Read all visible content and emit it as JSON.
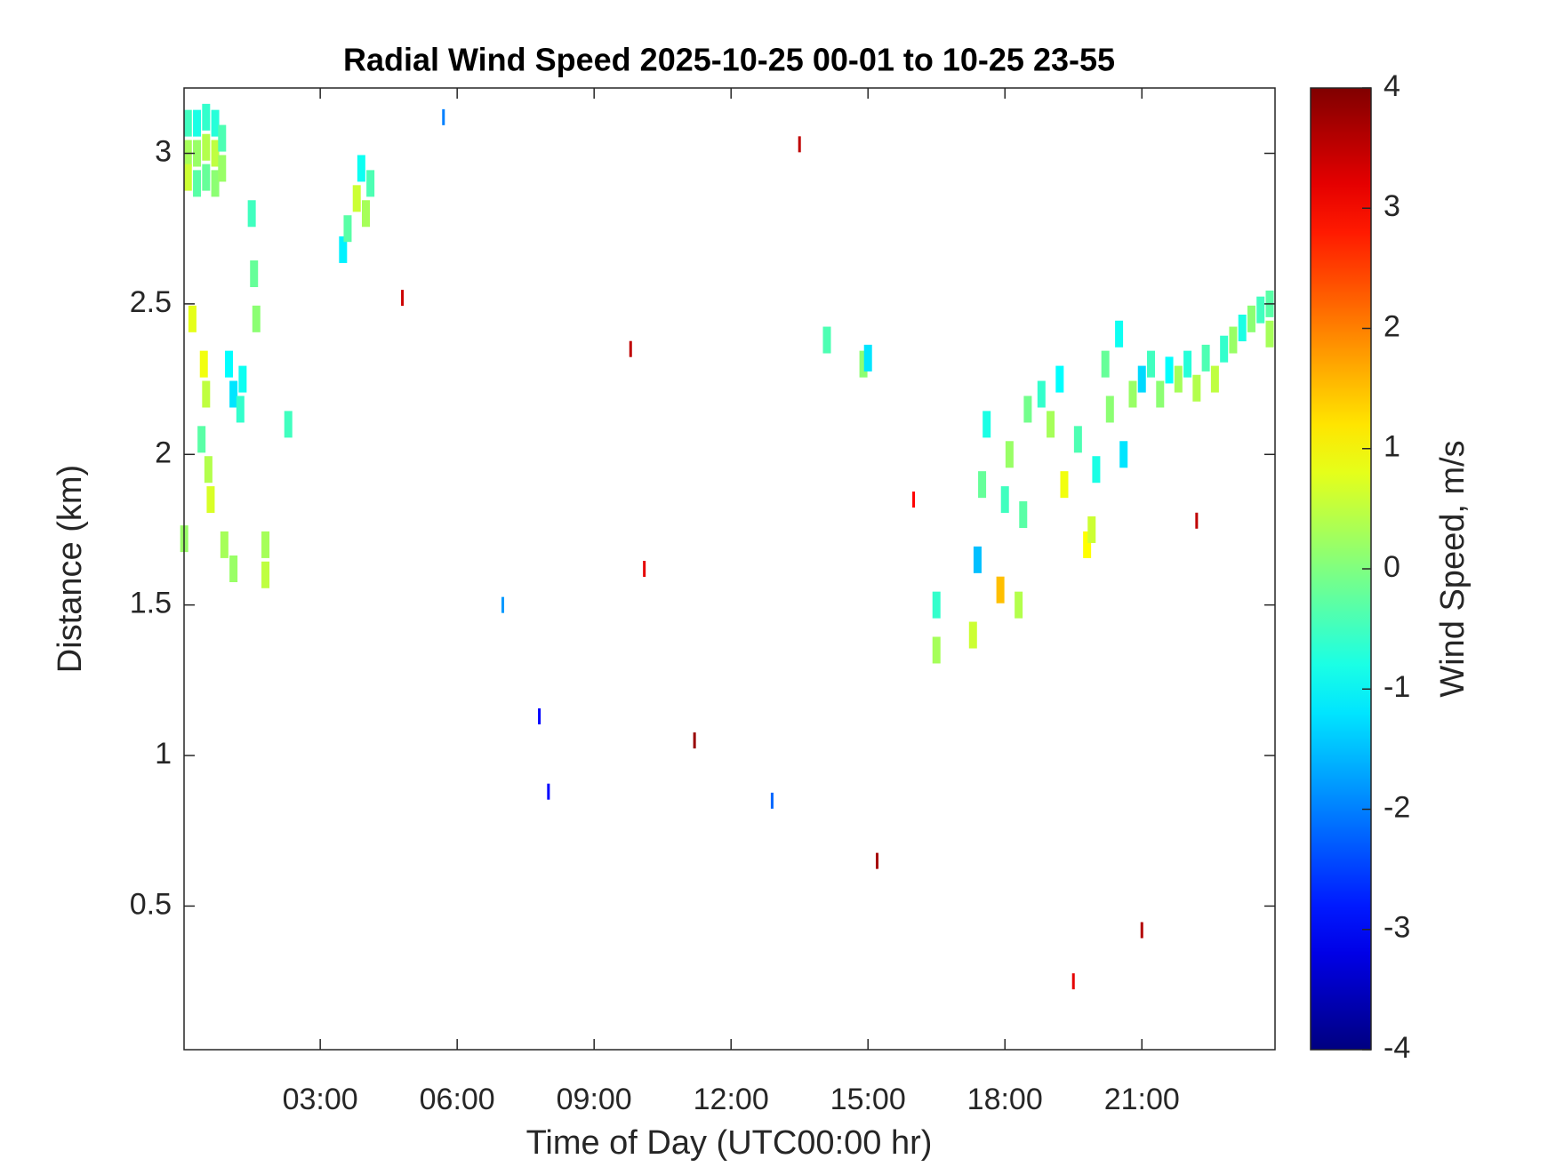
{
  "chart_data": {
    "type": "heatmap",
    "title": "Radial Wind Speed 2025-10-25 00-01 to 10-25 23-55",
    "x_label": "Time of Day (UTC00:00 hr)",
    "y_label": "Distance (km)",
    "colorbar_label": "Wind Speed, m/s",
    "colormap": "jet",
    "xlim": [
      0.0167,
      23.917
    ],
    "ylim": [
      0.023,
      3.217
    ],
    "clim": [
      -4,
      4
    ],
    "xticks": [
      {
        "value": 3,
        "label": "03:00"
      },
      {
        "value": 6,
        "label": "06:00"
      },
      {
        "value": 9,
        "label": "09:00"
      },
      {
        "value": 12,
        "label": "12:00"
      },
      {
        "value": 15,
        "label": "15:00"
      },
      {
        "value": 18,
        "label": "18:00"
      },
      {
        "value": 21,
        "label": "21:00"
      }
    ],
    "yticks": [
      0.5,
      1,
      1.5,
      2,
      2.5,
      3
    ],
    "cticks": [
      -4,
      -3,
      -2,
      -1,
      0,
      1,
      2,
      3,
      4
    ],
    "x": [
      0.1,
      0.1,
      0.1,
      0.3,
      0.3,
      0.3,
      0.5,
      0.5,
      0.5,
      0.7,
      0.7,
      0.7,
      0.85,
      0.85,
      0.2,
      0.45,
      0.5,
      0.4,
      0.55,
      0.6,
      0.9,
      1.1,
      1.0,
      1.1,
      1.25,
      1.3,
      1.5,
      1.55,
      1.6,
      1.8,
      1.8,
      0.02,
      3.5,
      3.6,
      3.8,
      3.9,
      4.1,
      4.0,
      14.1,
      14.9,
      15.0,
      16.5,
      16.5,
      17.3,
      17.4,
      17.5,
      17.6,
      17.9,
      18.0,
      18.1,
      18.3,
      18.4,
      18.5,
      18.8,
      19.0,
      19.2,
      19.3,
      19.6,
      19.8,
      19.9,
      20.0,
      20.2,
      20.3,
      20.5,
      20.6,
      20.8,
      21.0,
      21.2,
      21.4,
      21.6,
      21.8,
      22.0,
      22.2,
      22.4,
      22.6,
      22.8,
      23.0,
      23.2,
      23.4,
      23.6,
      23.8,
      23.8,
      5.7,
      9.8,
      11.2,
      13.5,
      8.0,
      22.2,
      21.0,
      10.1,
      7.8,
      4.8,
      15.2,
      2.3,
      12.9,
      16.0,
      19.5,
      7.0
    ],
    "y": [
      3.1,
      3.0,
      2.92,
      3.1,
      3.0,
      2.9,
      3.12,
      3.02,
      2.92,
      3.1,
      3.0,
      2.9,
      3.05,
      2.95,
      2.45,
      2.3,
      2.2,
      2.05,
      1.95,
      1.85,
      1.7,
      1.62,
      2.3,
      2.2,
      2.15,
      2.25,
      2.8,
      2.6,
      2.45,
      1.6,
      1.7,
      1.72,
      2.68,
      2.75,
      2.85,
      2.95,
      2.9,
      2.8,
      2.38,
      2.3,
      2.32,
      1.5,
      1.35,
      1.4,
      1.65,
      1.9,
      2.1,
      1.55,
      1.85,
      2.0,
      1.5,
      1.8,
      2.15,
      2.2,
      2.1,
      2.25,
      1.9,
      2.05,
      1.7,
      1.75,
      1.95,
      2.3,
      2.15,
      2.4,
      2.0,
      2.2,
      2.25,
      2.3,
      2.2,
      2.28,
      2.25,
      2.3,
      2.22,
      2.32,
      2.25,
      2.35,
      2.38,
      2.42,
      2.45,
      2.48,
      2.4,
      2.5,
      3.12,
      2.35,
      1.05,
      3.03,
      0.88,
      1.78,
      0.42,
      1.62,
      1.13,
      2.52,
      0.65,
      2.1,
      0.85,
      1.85,
      0.25,
      1.5
    ],
    "values": [
      -0.5,
      0.3,
      0.6,
      -0.8,
      0.2,
      -0.3,
      -0.6,
      0.4,
      -0.2,
      -0.7,
      0.5,
      0.1,
      -0.4,
      0.2,
      0.8,
      0.9,
      0.5,
      -0.3,
      0.4,
      0.7,
      0.3,
      0.2,
      -1.0,
      -1.2,
      -0.6,
      -0.9,
      -0.5,
      -0.2,
      0.1,
      0.5,
      0.3,
      0.2,
      -1.1,
      -0.3,
      0.6,
      -0.9,
      -0.4,
      0.3,
      -0.4,
      0.1,
      -1.2,
      -0.6,
      0.3,
      0.6,
      -1.5,
      -0.2,
      -0.8,
      1.5,
      -0.5,
      0.2,
      0.4,
      -0.3,
      -0.1,
      -0.6,
      0.3,
      -1.0,
      0.9,
      -0.4,
      1.0,
      0.6,
      -0.8,
      -0.2,
      0.1,
      -0.9,
      -1.2,
      0.2,
      -1.3,
      -0.5,
      0.1,
      -1.0,
      0.3,
      -0.7,
      0.4,
      -0.4,
      0.5,
      -0.6,
      0.2,
      -0.8,
      0.1,
      -0.5,
      0.3,
      -0.3,
      -2,
      3.5,
      3.8,
      3.5,
      -3,
      3.5,
      3.6,
      3.2,
      -3,
      3.4,
      3.7,
      -0.5,
      -2.2,
      3.0,
      3.2,
      -1.8
    ]
  }
}
